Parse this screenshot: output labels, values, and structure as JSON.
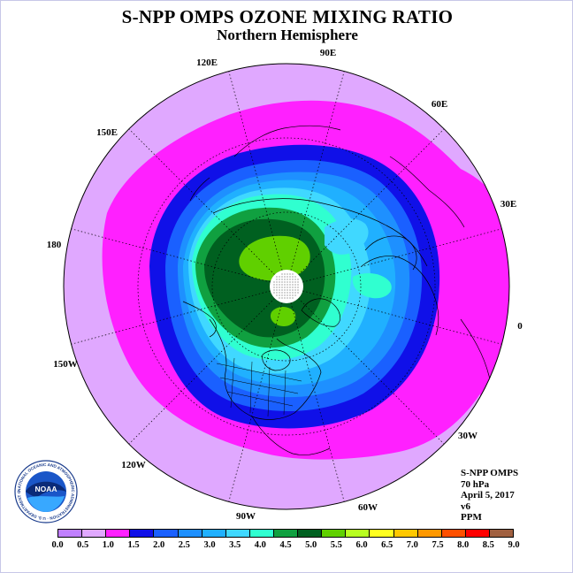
{
  "title": "S-NPP OMPS OZONE MIXING RATIO",
  "subtitle": "Northern Hemisphere",
  "longitude_labels": [
    "90E",
    "60E",
    "30E",
    "0",
    "30W",
    "60W",
    "90W",
    "120W",
    "150W",
    "180",
    "150E",
    "120E"
  ],
  "info": {
    "instrument": "S-NPP OMPS",
    "level": "70 hPa",
    "date": "April 5, 2017",
    "version": "v6",
    "units": "PPM"
  },
  "colorbar": {
    "ticks": [
      "0.0",
      "0.5",
      "1.0",
      "1.5",
      "2.0",
      "2.5",
      "3.0",
      "3.5",
      "4.0",
      "4.5",
      "5.0",
      "5.5",
      "6.0",
      "6.5",
      "7.0",
      "7.5",
      "8.0",
      "8.5",
      "9.0"
    ],
    "colors": [
      "#c080ff",
      "#e0a8ff",
      "#ff20ff",
      "#1010e8",
      "#1a60ff",
      "#1e90ff",
      "#20b0ff",
      "#40d8ff",
      "#30ffd0",
      "#10a040",
      "#006020",
      "#60d000",
      "#b8ff20",
      "#ffff20",
      "#ffc800",
      "#ff9800",
      "#ff5000",
      "#ff0000",
      "#a06040"
    ]
  },
  "logo": {
    "text": "NOAA",
    "ring_text": "NATIONAL OCEANIC AND ATMOSPHERIC ADMINISTRATION · U.S. DEPARTMENT OF COMMERCE"
  },
  "colors": {
    "map_background": "#e0a8ff",
    "band_1_0": "#ff20ff",
    "band_1_5": "#1010e8",
    "band_2_0": "#1a60ff",
    "band_2_5": "#1e90ff",
    "band_3_0": "#20b0ff",
    "band_3_5": "#40d8ff",
    "band_4_0": "#30ffd0",
    "band_4_5": "#10a040",
    "band_5_0": "#006020",
    "band_5_5": "#60d000",
    "band_6_0": "#b8ff20",
    "pole_fill": "#ffffff"
  }
}
